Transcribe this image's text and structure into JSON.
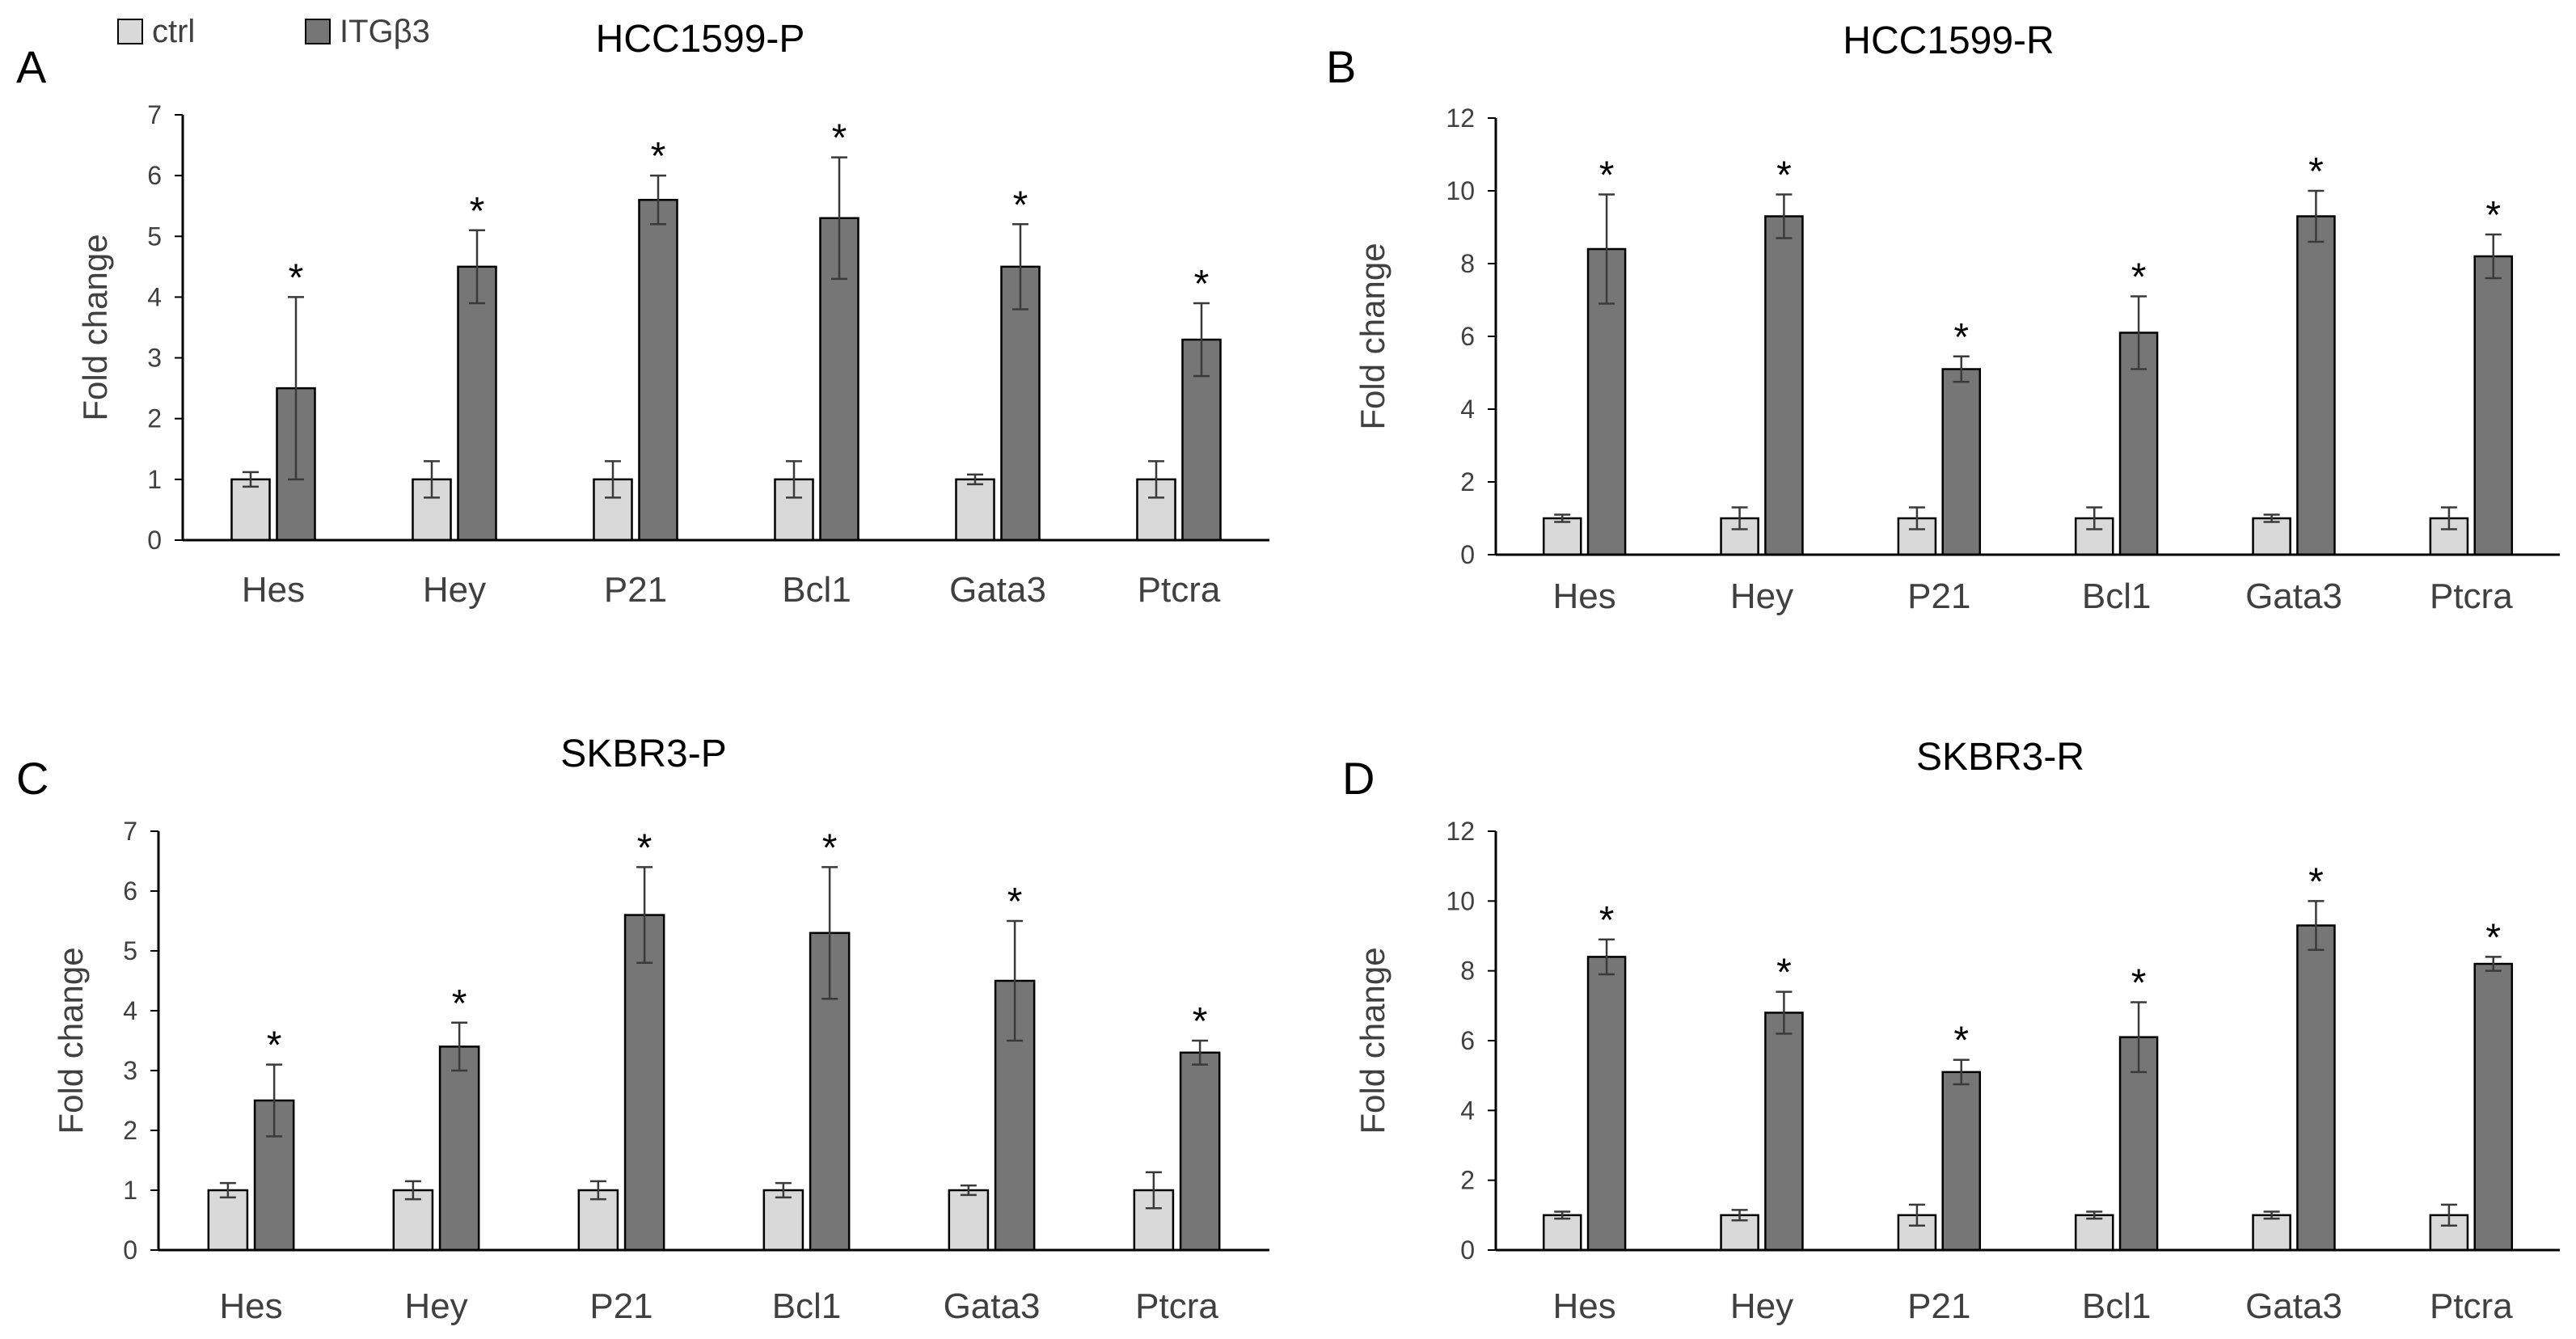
{
  "legend": {
    "items": [
      {
        "label": "ctrl",
        "color": "#d9d9d9"
      },
      {
        "label": "ITGβ3",
        "color": "#767676"
      }
    ]
  },
  "style": {
    "ctrl_color": "#d9d9d9",
    "treat_color": "#767676",
    "bar_stroke": "#000000",
    "axis_color": "#000000",
    "text_color": "#404040",
    "error_color": "#3a3a3a"
  },
  "chart_data": [
    {
      "panel": "A",
      "title": "HCC1599-P",
      "type": "bar",
      "ylabel": "Fold change",
      "ylim": [
        0,
        7
      ],
      "yticks": [
        0,
        1,
        2,
        3,
        4,
        5,
        6,
        7
      ],
      "categories": [
        "Hes",
        "Hey",
        "P21",
        "Bcl1",
        "Gata3",
        "Ptcra"
      ],
      "series": [
        {
          "name": "ctrl",
          "values": [
            1.0,
            1.0,
            1.0,
            1.0,
            1.0,
            1.0
          ],
          "errors": [
            0.12,
            0.3,
            0.3,
            0.3,
            0.08,
            0.3
          ]
        },
        {
          "name": "ITGβ3",
          "values": [
            2.5,
            4.5,
            5.6,
            5.3,
            4.5,
            3.3
          ],
          "errors": [
            1.5,
            0.6,
            0.4,
            1.0,
            0.7,
            0.6
          ]
        }
      ],
      "annotations": [
        "*",
        "*",
        "*",
        "*",
        "*",
        "*"
      ]
    },
    {
      "panel": "B",
      "title": "HCC1599-R",
      "type": "bar",
      "ylabel": "Fold change",
      "ylim": [
        0,
        12
      ],
      "yticks": [
        0,
        2,
        4,
        6,
        8,
        10,
        12
      ],
      "categories": [
        "Hes",
        "Hey",
        "P21",
        "Bcl1",
        "Gata3",
        "Ptcra"
      ],
      "series": [
        {
          "name": "ctrl",
          "values": [
            1.0,
            1.0,
            1.0,
            1.0,
            1.0,
            1.0
          ],
          "errors": [
            0.1,
            0.3,
            0.3,
            0.3,
            0.1,
            0.3
          ]
        },
        {
          "name": "ITGβ3",
          "values": [
            8.4,
            9.3,
            5.1,
            6.1,
            9.3,
            8.2
          ],
          "errors": [
            1.5,
            0.6,
            0.35,
            1.0,
            0.7,
            0.6
          ]
        }
      ],
      "annotations": [
        "*",
        "*",
        "*",
        "*",
        "*",
        "*"
      ]
    },
    {
      "panel": "C",
      "title": "SKBR3-P",
      "type": "bar",
      "ylabel": "Fold change",
      "ylim": [
        0,
        7
      ],
      "yticks": [
        0,
        1,
        2,
        3,
        4,
        5,
        6,
        7
      ],
      "categories": [
        "Hes",
        "Hey",
        "P21",
        "Bcl1",
        "Gata3",
        "Ptcra"
      ],
      "series": [
        {
          "name": "ctrl",
          "values": [
            1.0,
            1.0,
            1.0,
            1.0,
            1.0,
            1.0
          ],
          "errors": [
            0.12,
            0.15,
            0.15,
            0.12,
            0.08,
            0.3
          ]
        },
        {
          "name": "ITGβ3",
          "values": [
            2.5,
            3.4,
            5.6,
            5.3,
            4.5,
            3.3
          ],
          "errors": [
            0.6,
            0.4,
            0.8,
            1.1,
            1.0,
            0.2
          ]
        }
      ],
      "annotations": [
        "*",
        "*",
        "*",
        "*",
        "*",
        "*"
      ]
    },
    {
      "panel": "D",
      "title": "SKBR3-R",
      "type": "bar",
      "ylabel": "Fold change",
      "ylim": [
        0,
        12
      ],
      "yticks": [
        0,
        2,
        4,
        6,
        8,
        10,
        12
      ],
      "categories": [
        "Hes",
        "Hey",
        "P21",
        "Bcl1",
        "Gata3",
        "Ptcra"
      ],
      "series": [
        {
          "name": "ctrl",
          "values": [
            1.0,
            1.0,
            1.0,
            1.0,
            1.0,
            1.0
          ],
          "errors": [
            0.1,
            0.15,
            0.3,
            0.1,
            0.1,
            0.3
          ]
        },
        {
          "name": "ITGβ3",
          "values": [
            8.4,
            6.8,
            5.1,
            6.1,
            9.3,
            8.2
          ],
          "errors": [
            0.5,
            0.6,
            0.35,
            1.0,
            0.7,
            0.2
          ]
        }
      ],
      "annotations": [
        "*",
        "*",
        "*",
        "*",
        "*",
        "*"
      ]
    }
  ]
}
